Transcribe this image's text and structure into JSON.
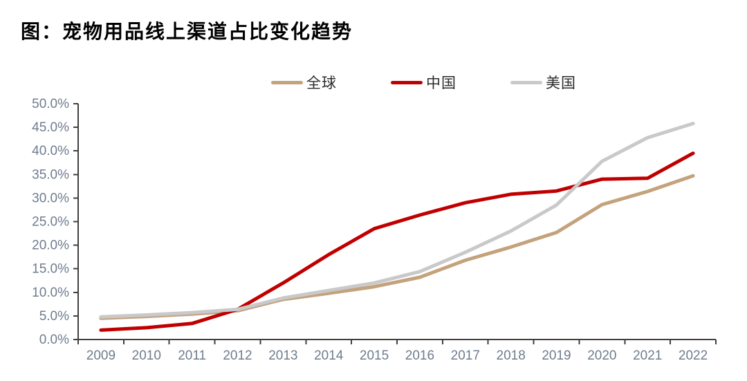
{
  "title": "图：宠物用品线上渠道占比变化趋势",
  "legend": {
    "items": [
      {
        "label": "全球",
        "color": "#C3A27C"
      },
      {
        "label": "中国",
        "color": "#C00000"
      },
      {
        "label": "美国",
        "color": "#C9C9C9"
      }
    ]
  },
  "chart_data": {
    "type": "line",
    "title": "图：宠物用品线上渠道占比变化趋势",
    "x": [
      2009,
      2010,
      2011,
      2012,
      2013,
      2014,
      2015,
      2016,
      2017,
      2018,
      2019,
      2020,
      2021,
      2022
    ],
    "series": [
      {
        "name": "全球",
        "color": "#C3A27C",
        "values": [
          4.5,
          4.9,
          5.4,
          6.1,
          8.5,
          9.8,
          11.2,
          13.2,
          16.8,
          19.6,
          22.7,
          28.6,
          31.4,
          34.7
        ]
      },
      {
        "name": "中国",
        "color": "#C00000",
        "values": [
          2.0,
          2.5,
          3.4,
          6.4,
          12.0,
          18.0,
          23.5,
          26.4,
          29.0,
          30.8,
          31.5,
          34.0,
          34.2,
          39.5
        ]
      },
      {
        "name": "美国",
        "color": "#C9C9C9",
        "values": [
          4.8,
          5.2,
          5.7,
          6.4,
          8.8,
          10.4,
          12.0,
          14.4,
          18.5,
          23.0,
          28.5,
          37.8,
          42.8,
          45.8
        ]
      }
    ],
    "ylim": [
      0,
      50
    ],
    "y_ticks": [
      0,
      5,
      10,
      15,
      20,
      25,
      30,
      35,
      40,
      45,
      50
    ],
    "y_tick_suffix": "%",
    "xlabel": "",
    "ylabel": "",
    "grid": false,
    "legend_position": "top-center"
  },
  "style": {
    "axis_line_color": "#3f3f3f",
    "tick_label_color": "#6e7c8e",
    "line_width": 5
  }
}
